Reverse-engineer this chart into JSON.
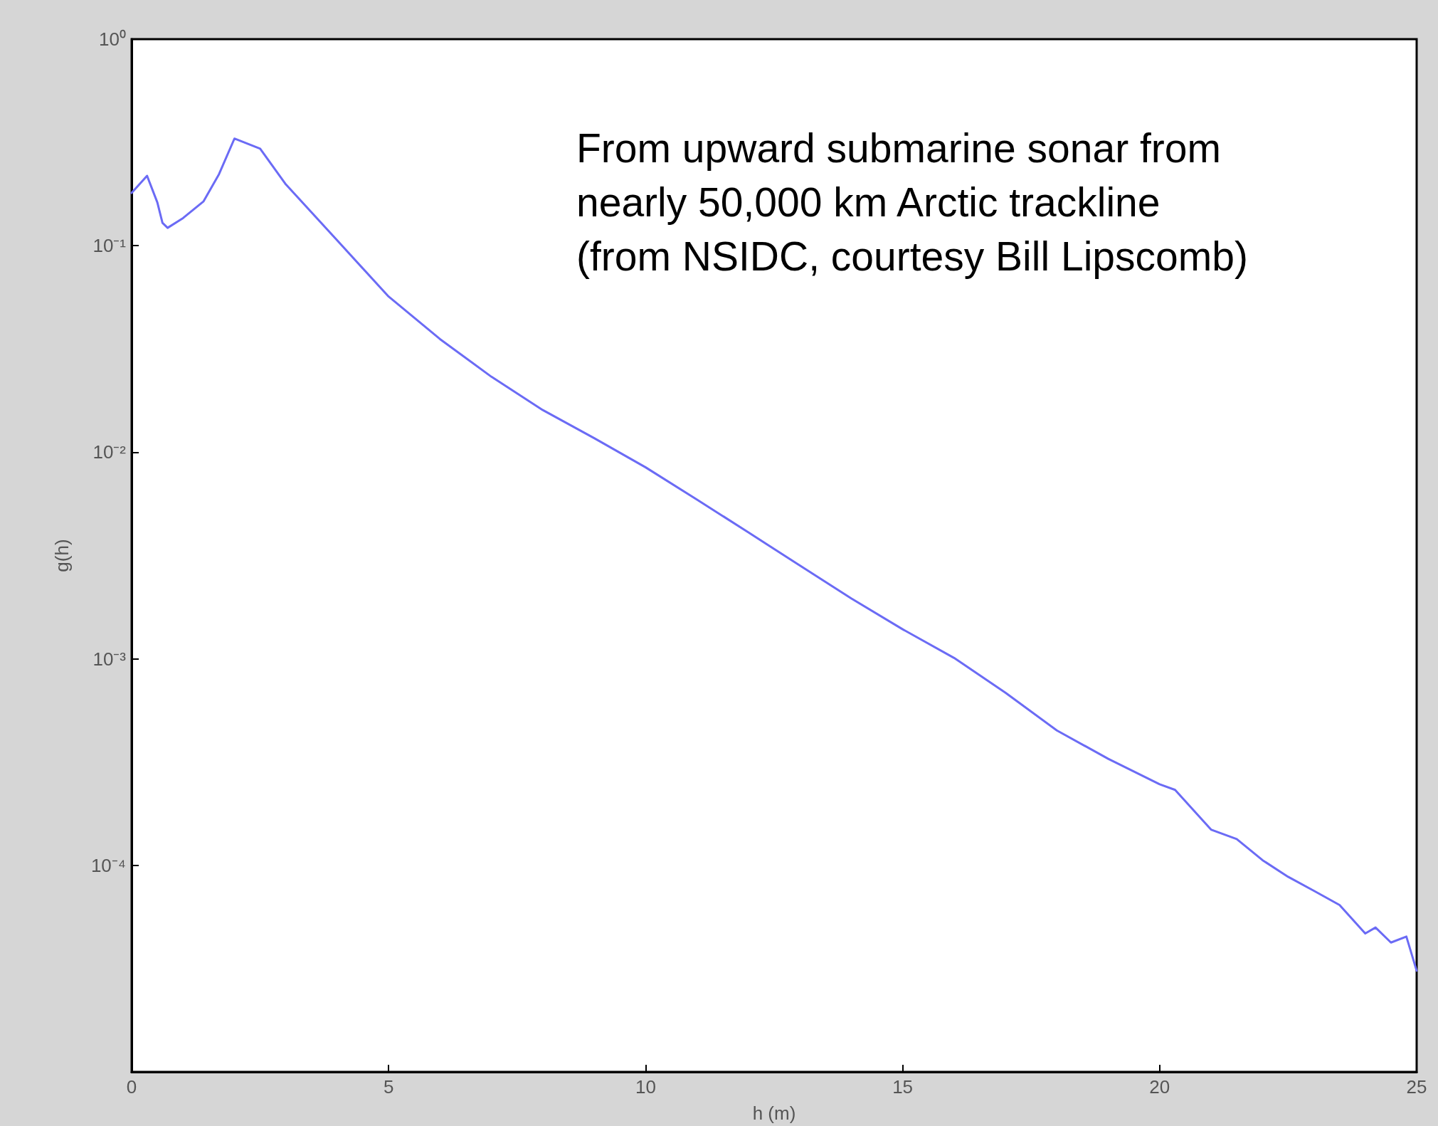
{
  "chart_data": {
    "type": "line",
    "xlabel": "h (m)",
    "ylabel": "g(h)",
    "log": "y",
    "grid": false,
    "marker": "none",
    "line_style": "solid",
    "annotations": [
      "From upward submarine sonar from\nnearly 50,000 km Arctic trackline\n(from NSIDC, courtesy Bill Lipscomb)"
    ],
    "xlim": [
      0,
      25
    ],
    "xticks": [
      0,
      5,
      10,
      15,
      20,
      25
    ],
    "ylim": [
      1e-05,
      1
    ],
    "yticks": [
      {
        "value": 1,
        "label": "10⁰"
      },
      {
        "value": 0.1,
        "label": "10⁻¹"
      },
      {
        "value": 0.01,
        "label": "10⁻²"
      },
      {
        "value": 0.001,
        "label": "10⁻³"
      },
      {
        "value": 0.0001,
        "label": "10⁻⁴"
      },
      {
        "value": 1e-05,
        "label": null
      }
    ],
    "x": [
      0,
      0.3,
      0.5,
      0.6,
      0.7,
      1,
      1.4,
      1.7,
      2,
      2.5,
      3,
      4,
      5,
      6,
      7,
      8,
      9,
      10,
      11,
      12,
      13,
      14,
      15,
      16,
      17,
      18,
      19,
      20,
      20.3,
      21,
      21.5,
      22,
      22.5,
      23,
      23.5,
      24,
      24.2,
      24.5,
      24.8,
      25
    ],
    "series": [
      {
        "color": "#6b6bf5",
        "values": [
          0.18,
          0.218,
          0.162,
          0.129,
          0.122,
          0.136,
          0.164,
          0.222,
          0.33,
          0.295,
          0.198,
          0.106,
          0.0567,
          0.0353,
          0.0232,
          0.016,
          0.0117,
          0.00845,
          0.0059,
          0.00409,
          0.00283,
          0.00196,
          0.00139,
          0.00101,
          0.000685,
          0.00045,
          0.000328,
          0.000247,
          0.000232,
          0.000149,
          0.000134,
          0.000106,
          8.8e-05,
          7.53e-05,
          6.43e-05,
          4.68e-05,
          5e-05,
          4.23e-05,
          4.52e-05,
          3.09e-05
        ]
      }
    ]
  }
}
